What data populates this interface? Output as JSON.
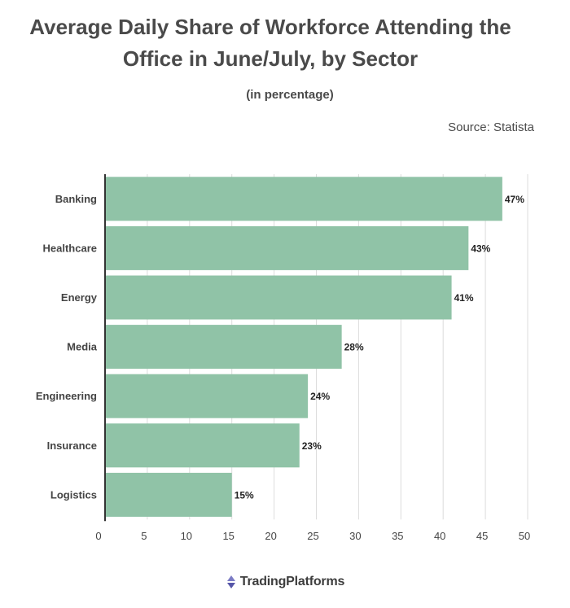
{
  "header": {
    "title_line1": "Average Daily Share of Workforce Attending the",
    "title_line2": "Office in June/July, by Sector",
    "subtitle": "(in percentage)",
    "source": "Source: Statista"
  },
  "footer": {
    "logo_text": "TradingPlatforms",
    "logo_icon": "tradingplatforms-logo-icon"
  },
  "colors": {
    "bar": "#90c3a7",
    "grid": "#dcdcdc",
    "axis": "#333333",
    "logo_up": "#7b7bc4",
    "logo_down": "#5656a8"
  },
  "chart_data": {
    "type": "bar",
    "orientation": "horizontal",
    "categories": [
      "Banking",
      "Healthcare",
      "Energy",
      "Media",
      "Engineering",
      "Insurance",
      "Logistics"
    ],
    "values": [
      47,
      43,
      41,
      28,
      24,
      23,
      15
    ],
    "data_labels": [
      "47%",
      "43%",
      "41%",
      "28%",
      "24%",
      "23%",
      "15%"
    ],
    "xlim": [
      0,
      50
    ],
    "x_ticks": [
      0,
      5,
      10,
      15,
      20,
      25,
      30,
      35,
      40,
      45,
      50
    ],
    "grid": true
  }
}
